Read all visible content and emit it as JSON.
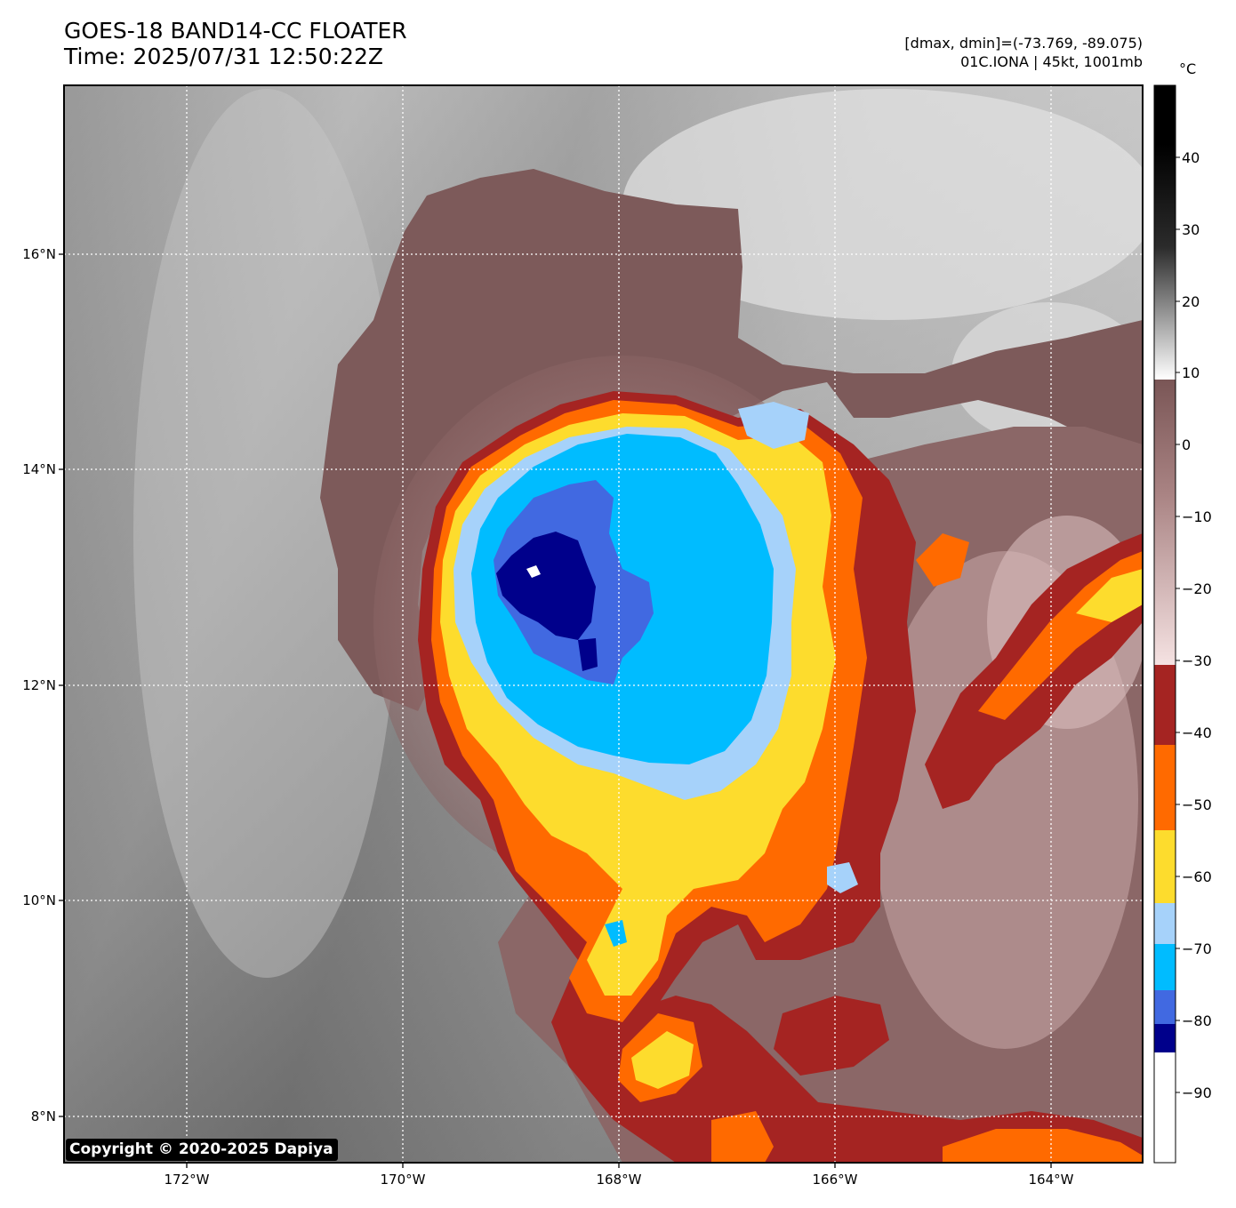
{
  "header": {
    "title_line1": "GOES-18 BAND14-CC FLOATER",
    "title_line2": "Time: 2025/07/31 12:50:22Z",
    "stats": "[dmax, dmin]=(-73.769, -89.075)",
    "storm": "01C.IONA | 45kt, 1001mb"
  },
  "colorbar": {
    "unit": "°C",
    "ticks": [
      "40",
      "30",
      "20",
      "10",
      "0",
      "−10",
      "−20",
      "−30",
      "−40",
      "−50",
      "−60",
      "−70",
      "−80",
      "−90"
    ],
    "colors": {
      "warm_dark": "#000000",
      "warm_light": "#ffffff",
      "brown": "#7a5656",
      "pink": "#f2dcdc",
      "maroon": "#a52422",
      "orange": "#ff6a00",
      "yellow": "#fddc2d",
      "light_blue": "#a6d2fa",
      "sky_blue": "#00bcff",
      "royal_blue": "#4169e1",
      "navy": "#00008b",
      "white": "#ffffff"
    }
  },
  "map": {
    "lon_labels": [
      "172°W",
      "170°W",
      "168°W",
      "166°W",
      "164°W"
    ],
    "lat_labels": [
      "16°N",
      "14°N",
      "12°N",
      "10°N",
      "8°N"
    ]
  },
  "footer": {
    "copyright": "Copyright © 2020-2025 Dapiya"
  }
}
